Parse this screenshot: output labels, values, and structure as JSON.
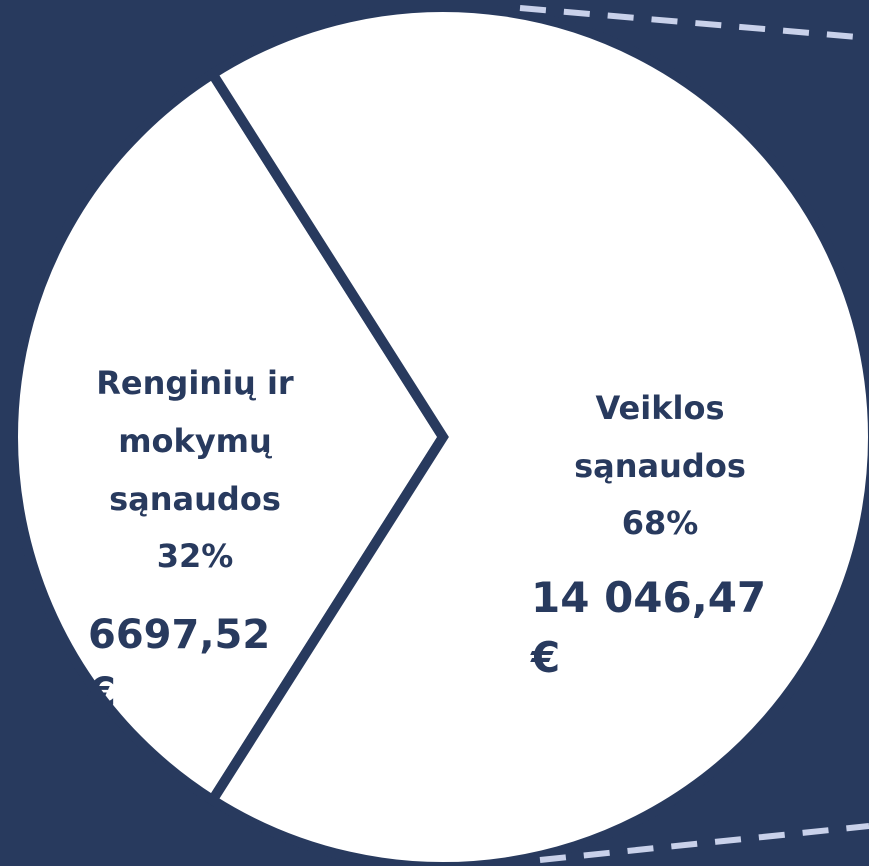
{
  "chart_data": {
    "type": "pie",
    "categories": [
      "Renginių ir mokymų sąnaudos",
      "Veiklos sąnaudos"
    ],
    "values": [
      32,
      68
    ],
    "value_labels": [
      "32%",
      "68%"
    ],
    "amounts": [
      6697.52,
      14046.47
    ],
    "amount_labels": [
      "6697,52 €",
      "14 046,47 €"
    ],
    "colors": [
      "#ffffff",
      "#ffffff"
    ],
    "separator_color": "#283a5e",
    "background": "#283a5e"
  }
}
